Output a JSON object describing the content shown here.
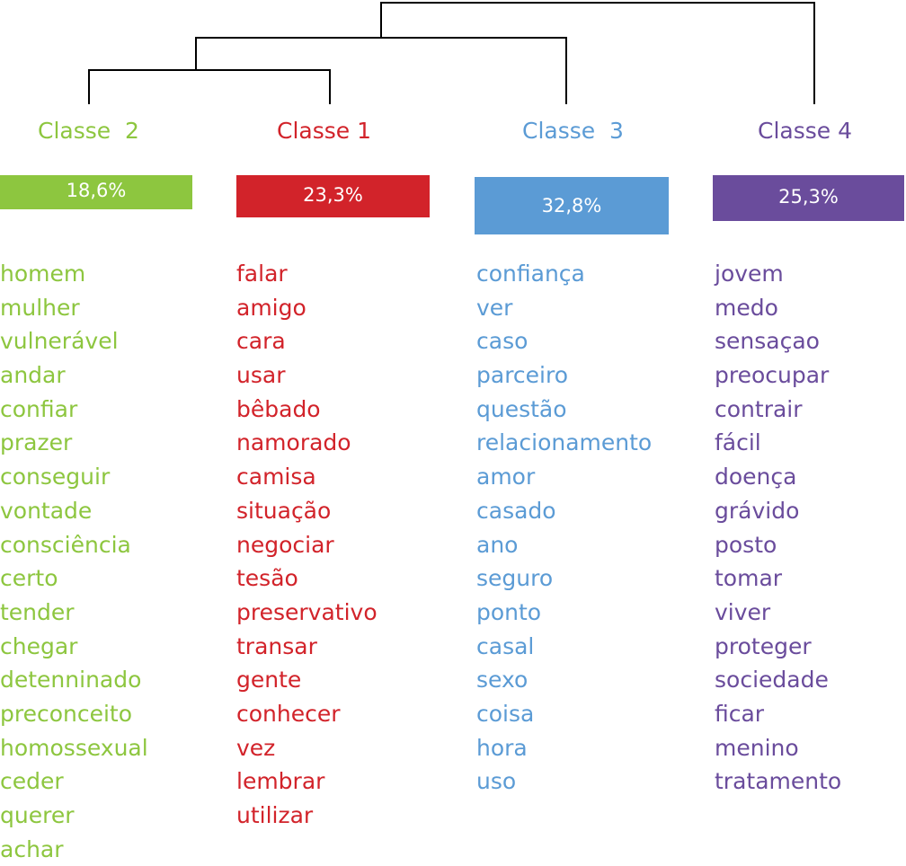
{
  "classes": [
    {
      "title": "Classe  2",
      "percent": "18,6%",
      "color": "#8dc63f",
      "words": [
        "homem",
        "mulher",
        "vulnerável",
        "andar",
        "confiar",
        "prazer",
        "conseguir",
        "vontade",
        "consciência",
        "certo",
        "tender",
        "chegar",
        "detenninado",
        "preconceito",
        "homossexual",
        "ceder",
        "querer",
        "achar"
      ]
    },
    {
      "title": "Classe 1",
      "percent": "23,3%",
      "color": "#d2232a",
      "words": [
        "falar",
        "amigo",
        "cara",
        "usar",
        "bêbado",
        "namorado",
        "camisa",
        "situação",
        "negociar",
        "tesão",
        "preservativo",
        "transar",
        "gente",
        "conhecer",
        "vez",
        "lembrar",
        "utilizar"
      ]
    },
    {
      "title": "Classe  3",
      "percent": "32,8%",
      "color": "#5b9bd5",
      "words": [
        "confiança",
        "ver",
        "caso",
        "parceiro",
        "questão",
        "relacionamento",
        "amor",
        "casado",
        "ano",
        "seguro",
        "ponto",
        "casal",
        "sexo",
        "coisa",
        "hora",
        "uso"
      ]
    },
    {
      "title": "Classe 4",
      "percent": "25,3%",
      "color": "#6a4c9c",
      "words": [
        "jovem",
        "medo",
        "sensaçao",
        "preocupar",
        "contrair",
        "fácil",
        "doença",
        "grávido",
        "posto",
        "tomar",
        "viver",
        "proteger",
        "sociedade",
        "ficar",
        "menino",
        "tratamento"
      ]
    }
  ]
}
